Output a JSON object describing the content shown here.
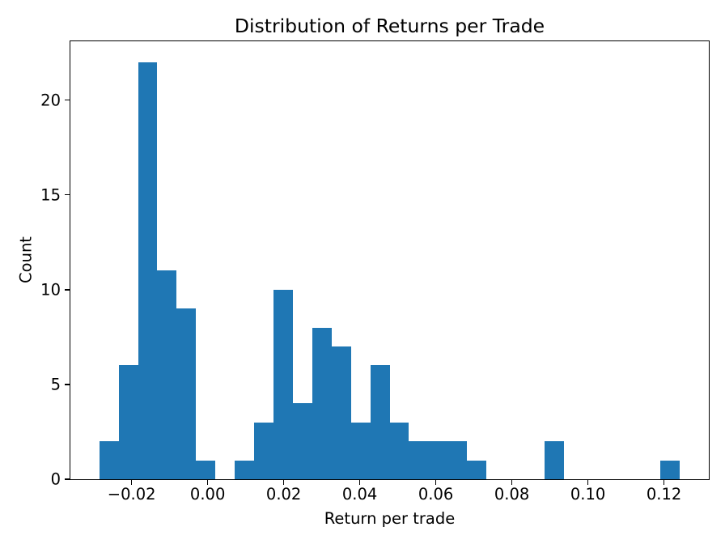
{
  "figure": {
    "background": "#ffffff",
    "axis_color": "#000000",
    "text_color": "#000000"
  },
  "chart_data": {
    "type": "bar",
    "chart_kind": "histogram",
    "title": "Distribution of Returns per Trade",
    "xlabel": "Return per trade",
    "ylabel": "Count",
    "bar_color": "#1f77b4",
    "grid": false,
    "legend": false,
    "bins": {
      "start": -0.0285,
      "width": 0.00509,
      "count": 30
    },
    "counts": [
      2,
      6,
      22,
      11,
      9,
      1,
      0,
      1,
      3,
      10,
      4,
      8,
      7,
      3,
      6,
      3,
      2,
      2,
      2,
      1,
      0,
      0,
      0,
      2,
      0,
      0,
      0,
      0,
      0,
      1
    ],
    "total_trades": 106,
    "xlim": [
      -0.0361,
      0.1318
    ],
    "ylim": [
      0,
      23.1
    ],
    "xticks": [
      {
        "value": -0.02,
        "label": "−0.02"
      },
      {
        "value": 0.0,
        "label": "0.00"
      },
      {
        "value": 0.02,
        "label": "0.02"
      },
      {
        "value": 0.04,
        "label": "0.04"
      },
      {
        "value": 0.06,
        "label": "0.06"
      },
      {
        "value": 0.08,
        "label": "0.08"
      },
      {
        "value": 0.1,
        "label": "0.10"
      },
      {
        "value": 0.12,
        "label": "0.12"
      }
    ],
    "yticks": [
      {
        "value": 0,
        "label": "0"
      },
      {
        "value": 5,
        "label": "5"
      },
      {
        "value": 10,
        "label": "10"
      },
      {
        "value": 15,
        "label": "15"
      },
      {
        "value": 20,
        "label": "20"
      }
    ]
  }
}
